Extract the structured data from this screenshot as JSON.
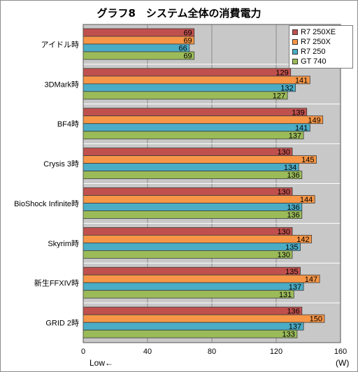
{
  "chart_data": {
    "type": "bar",
    "orientation": "horizontal",
    "title": "グラフ8　システム全体の消費電力",
    "unit": "(W)",
    "axis_note": "Low←",
    "xlim": [
      0,
      160
    ],
    "xticks": [
      0,
      40,
      80,
      120,
      160
    ],
    "grid": true,
    "legend_position": "top-right",
    "categories": [
      "アイドル時",
      "3DMark時",
      "BF4時",
      "Crysis 3時",
      "BioShock Infinite時",
      "Skyrim時",
      "新生FFXIV時",
      "GRID 2時"
    ],
    "series": [
      {
        "name": "R7 250XE",
        "color": "#c0504d",
        "values": [
          69,
          129,
          139,
          130,
          130,
          130,
          135,
          136
        ]
      },
      {
        "name": "R7 250X",
        "color": "#f79646",
        "values": [
          69,
          141,
          149,
          145,
          144,
          142,
          147,
          150
        ]
      },
      {
        "name": "R7 250",
        "color": "#4bacc6",
        "values": [
          66,
          132,
          141,
          134,
          136,
          135,
          137,
          137
        ]
      },
      {
        "name": "GT 740",
        "color": "#9bbb59",
        "values": [
          69,
          127,
          137,
          136,
          136,
          130,
          131,
          133
        ]
      }
    ]
  }
}
